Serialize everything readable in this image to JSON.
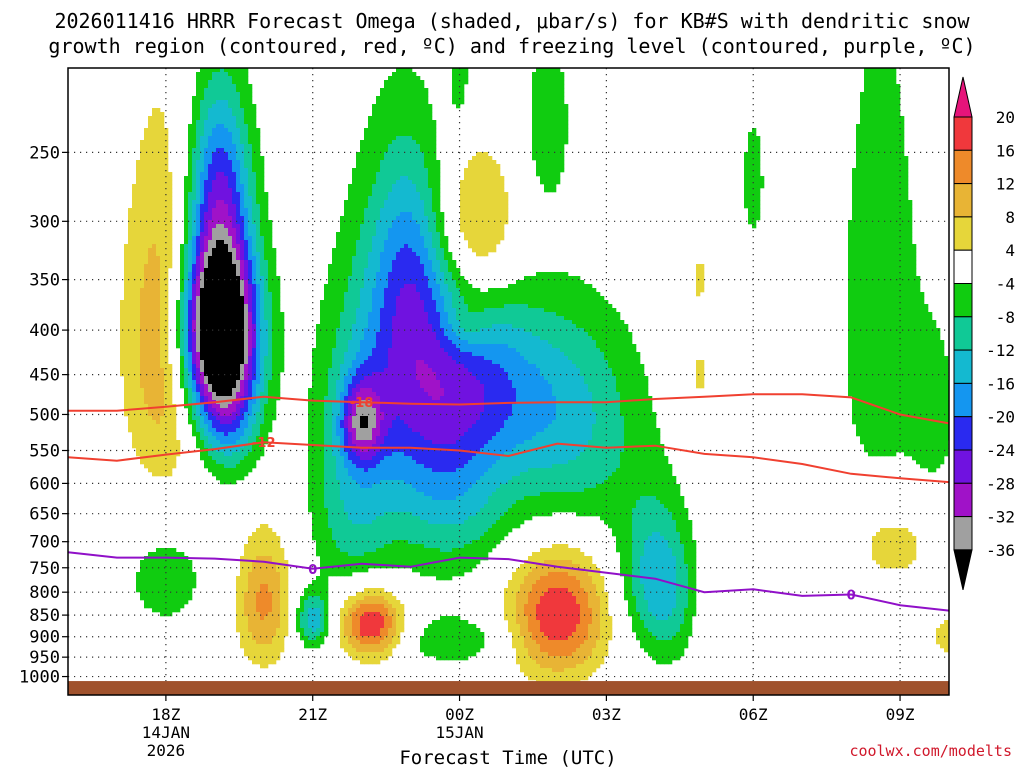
{
  "header": {
    "title_line1": "2026011416 HRRR Forecast Omega (shaded, μbar/s) for KB#S with dendritic snow",
    "title_line2": "growth region (contoured, red, ºC) and freezing level (contoured, purple, ºC)"
  },
  "credit": "coolwx.com/modelts",
  "chart_data": {
    "type": "contour-time-height",
    "xlabel": "Forecast Time (UTC)",
    "ylabel": "",
    "x_ticks": [
      {
        "hour": 2,
        "label": "18Z",
        "sub1": "14JAN",
        "sub2": "2026"
      },
      {
        "hour": 5,
        "label": "21Z",
        "sub1": "",
        "sub2": ""
      },
      {
        "hour": 8,
        "label": "00Z",
        "sub1": "15JAN",
        "sub2": ""
      },
      {
        "hour": 11,
        "label": "03Z",
        "sub1": "",
        "sub2": ""
      },
      {
        "hour": 14,
        "label": "06Z",
        "sub1": "",
        "sub2": ""
      },
      {
        "hour": 17,
        "label": "09Z",
        "sub1": "",
        "sub2": ""
      }
    ],
    "xlim_hours_since_16Z": [
      0,
      18
    ],
    "y_scale": "log-pressure",
    "ylim_mb": [
      1050,
      200
    ],
    "y_ticks_mb": [
      250,
      300,
      350,
      400,
      450,
      500,
      550,
      600,
      650,
      700,
      750,
      800,
      850,
      900,
      950,
      1000
    ],
    "grid": "dotted",
    "colorbar": {
      "labels": [
        "20",
        "16",
        "12",
        "8",
        "4",
        "-4",
        "-8",
        "-12",
        "-16",
        "-20",
        "-24",
        "-28",
        "-32",
        "-36"
      ],
      "bands": [
        {
          "range": [
            16,
            20
          ],
          "color": "#f0383c"
        },
        {
          "range": [
            12,
            16
          ],
          "color": "#ee8a2a"
        },
        {
          "range": [
            8,
            12
          ],
          "color": "#e8b435"
        },
        {
          "range": [
            4,
            8
          ],
          "color": "#e6d63a"
        },
        {
          "range": [
            -4,
            4
          ],
          "color": "#ffffff"
        },
        {
          "range": [
            -8,
            -4
          ],
          "color": "#10cc10"
        },
        {
          "range": [
            -12,
            -8
          ],
          "color": "#10c996"
        },
        {
          "range": [
            -16,
            -12
          ],
          "color": "#14b9d0"
        },
        {
          "range": [
            -20,
            -16
          ],
          "color": "#1496f0"
        },
        {
          "range": [
            -24,
            -20
          ],
          "color": "#2a2af0"
        },
        {
          "range": [
            -28,
            -24
          ],
          "color": "#7012e0"
        },
        {
          "range": [
            -32,
            -28
          ],
          "color": "#a012c8"
        },
        {
          "range": [
            -36,
            -32
          ],
          "color": "#a0a0a0"
        }
      ],
      "top_arrow_color": "#e6147a",
      "bottom_arrow_color": "#000000"
    },
    "omega_field": {
      "background": 0,
      "blobs": [
        {
          "t": 3.1,
          "p": 405,
          "a": -48,
          "st": 0.55,
          "sp": 70
        },
        {
          "t": 3.05,
          "p": 330,
          "a": -14,
          "st": 0.45,
          "sp": 85
        },
        {
          "t": 3.3,
          "p": 520,
          "a": -10,
          "st": 0.45,
          "sp": 55
        },
        {
          "t": 3.1,
          "p": 255,
          "a": -9,
          "st": 0.45,
          "sp": 40
        },
        {
          "t": 6.0,
          "p": 510,
          "a": -20,
          "st": 0.3,
          "sp": 40
        },
        {
          "t": 5.8,
          "p": 640,
          "a": -10,
          "st": 0.6,
          "sp": 110
        },
        {
          "t": 6.6,
          "p": 420,
          "a": -7,
          "st": 0.9,
          "sp": 140
        },
        {
          "t": 7.0,
          "p": 330,
          "a": -11,
          "st": 0.55,
          "sp": 70
        },
        {
          "t": 7.2,
          "p": 450,
          "a": -13,
          "st": 1.1,
          "sp": 90
        },
        {
          "t": 7.8,
          "p": 600,
          "a": -13,
          "st": 0.9,
          "sp": 110
        },
        {
          "t": 8.8,
          "p": 460,
          "a": -11,
          "st": 1.0,
          "sp": 70
        },
        {
          "t": 10.5,
          "p": 470,
          "a": -7,
          "st": 1.0,
          "sp": 90
        },
        {
          "t": 10.2,
          "p": 580,
          "a": -7,
          "st": 1.0,
          "sp": 90
        },
        {
          "t": 11.9,
          "p": 760,
          "a": -11,
          "st": 0.5,
          "sp": 110
        },
        {
          "t": 9.8,
          "p": 230,
          "a": -7,
          "st": 0.35,
          "sp": 40
        },
        {
          "t": 8.0,
          "p": 205,
          "a": -6,
          "st": 0.15,
          "sp": 18
        },
        {
          "t": 16.6,
          "p": 390,
          "a": -7,
          "st": 0.65,
          "sp": 200
        },
        {
          "t": 17.7,
          "p": 500,
          "a": -6,
          "st": 0.35,
          "sp": 80
        },
        {
          "t": 14.0,
          "p": 270,
          "a": -6,
          "st": 0.2,
          "sp": 40
        },
        {
          "t": 2.0,
          "p": 770,
          "a": -6,
          "st": 0.7,
          "sp": 90
        },
        {
          "t": 5.0,
          "p": 860,
          "a": -15,
          "st": 0.25,
          "sp": 45
        },
        {
          "t": 7.9,
          "p": 910,
          "a": -7,
          "st": 0.9,
          "sp": 45
        },
        {
          "t": 12.3,
          "p": 810,
          "a": -7,
          "st": 0.4,
          "sp": 110
        },
        {
          "t": 8.1,
          "p": 395,
          "a": 6,
          "st": 0.35,
          "sp": 20
        },
        {
          "t": 2.0,
          "p": 410,
          "a": 13,
          "st": 0.6,
          "sp": 130
        },
        {
          "t": 8.3,
          "p": 305,
          "a": 12,
          "st": 0.6,
          "sp": 45
        },
        {
          "t": 4.0,
          "p": 820,
          "a": 13,
          "st": 0.4,
          "sp": 100
        },
        {
          "t": 6.2,
          "p": 870,
          "a": 21,
          "st": 0.45,
          "sp": 55
        },
        {
          "t": 10.0,
          "p": 850,
          "a": 20,
          "st": 0.7,
          "sp": 100
        },
        {
          "t": 12.9,
          "p": 450,
          "a": 6,
          "st": 0.15,
          "sp": 25
        },
        {
          "t": 12.9,
          "p": 350,
          "a": 6,
          "st": 0.13,
          "sp": 18
        },
        {
          "t": 13.0,
          "p": 890,
          "a": 5,
          "st": 0.12,
          "sp": 50
        },
        {
          "t": 16.8,
          "p": 700,
          "a": 7,
          "st": 0.7,
          "sp": 70
        },
        {
          "t": 18.0,
          "p": 900,
          "a": 6,
          "st": 0.3,
          "sp": 40
        }
      ]
    },
    "dgz_contours": [
      {
        "label": "-18",
        "color": "#f04030",
        "points": [
          [
            0,
            495
          ],
          [
            1,
            495
          ],
          [
            2,
            490
          ],
          [
            3,
            484
          ],
          [
            4,
            477
          ],
          [
            5,
            482
          ],
          [
            6,
            484
          ],
          [
            7,
            486
          ],
          [
            8,
            487
          ],
          [
            9,
            485
          ],
          [
            10,
            484
          ],
          [
            11,
            484
          ],
          [
            12,
            480
          ],
          [
            13,
            477
          ],
          [
            14,
            474
          ],
          [
            15,
            474
          ],
          [
            16,
            478
          ],
          [
            17,
            500
          ],
          [
            18,
            512
          ]
        ],
        "label_at_hour": 6.0
      },
      {
        "label": "-12",
        "color": "#f04030",
        "points": [
          [
            0,
            560
          ],
          [
            1,
            565
          ],
          [
            2,
            556
          ],
          [
            3,
            548
          ],
          [
            4,
            538
          ],
          [
            5,
            542
          ],
          [
            6,
            546
          ],
          [
            7,
            546
          ],
          [
            8,
            550
          ],
          [
            9,
            558
          ],
          [
            10,
            540
          ],
          [
            11,
            546
          ],
          [
            12,
            543
          ],
          [
            13,
            555
          ],
          [
            14,
            560
          ],
          [
            15,
            570
          ],
          [
            16,
            585
          ],
          [
            17,
            592
          ],
          [
            18,
            598
          ]
        ],
        "label_at_hour": 4.0
      }
    ],
    "freezing_level": {
      "label": "0",
      "color": "#9010c8",
      "points": [
        [
          0,
          720
        ],
        [
          1,
          730
        ],
        [
          2,
          730
        ],
        [
          3,
          732
        ],
        [
          4,
          738
        ],
        [
          5,
          752
        ],
        [
          6,
          742
        ],
        [
          7,
          748
        ],
        [
          8,
          730
        ],
        [
          9,
          733
        ],
        [
          10,
          748
        ],
        [
          11,
          760
        ],
        [
          12,
          772
        ],
        [
          13,
          800
        ],
        [
          14,
          794
        ],
        [
          15,
          808
        ],
        [
          16,
          805
        ],
        [
          17,
          828
        ],
        [
          18,
          840
        ]
      ],
      "label_at_hour": [
        5.0,
        16.0
      ]
    },
    "terrain_color": "#a0522d"
  }
}
